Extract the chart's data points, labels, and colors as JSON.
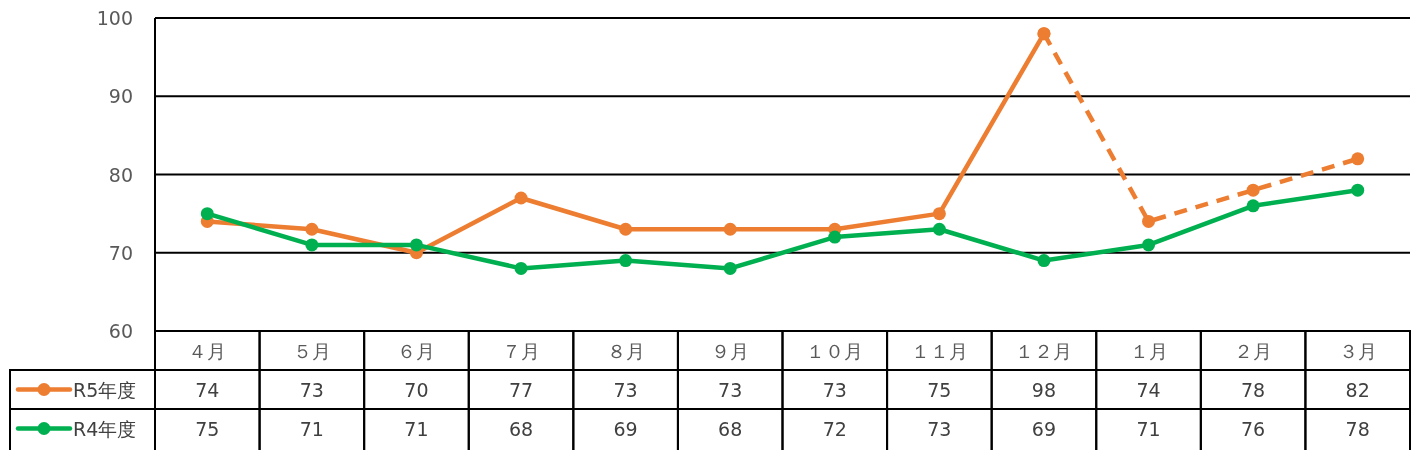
{
  "chart_data": {
    "type": "line",
    "categories": [
      "４月",
      "５月",
      "６月",
      "７月",
      "８月",
      "９月",
      "１０月",
      "１１月",
      "１２月",
      "１月",
      "２月",
      "３月"
    ],
    "series": [
      {
        "name": "R5年度",
        "color": "#ed7d31",
        "values": [
          74,
          73,
          70,
          77,
          73,
          73,
          73,
          75,
          98,
          null,
          null,
          null
        ],
        "value_labels": [
          "74",
          "73",
          "70",
          "77",
          "73",
          "73",
          "73",
          "75",
          "98",
          "74",
          "78",
          "82"
        ]
      },
      {
        "color": "#ed7d31",
        "line_style": "dashed",
        "values": [
          null,
          null,
          null,
          null,
          null,
          null,
          null,
          null,
          98,
          74,
          78,
          82
        ]
      },
      {
        "name": "R4年度",
        "color": "#00b050",
        "values": [
          75,
          71,
          71,
          68,
          69,
          68,
          72,
          73,
          69,
          71,
          76,
          78
        ],
        "value_labels": [
          "75",
          "71",
          "71",
          "68",
          "69",
          "68",
          "72",
          "73",
          "69",
          "71",
          "76",
          "78"
        ]
      }
    ],
    "ylim": [
      60,
      100
    ],
    "yticks": [
      60,
      70,
      80,
      90,
      100
    ],
    "grid": "y",
    "legend": "bottom",
    "marker": "circle"
  }
}
